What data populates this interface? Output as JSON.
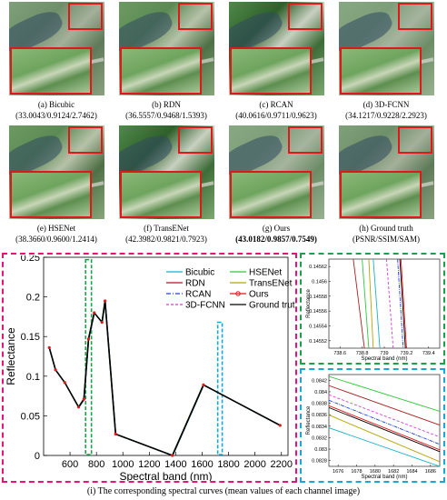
{
  "panels": [
    {
      "label": "(a) Bicubic",
      "metrics": "(33.0043/0.9124/2.7462)",
      "bold": false
    },
    {
      "label": "(b) RDN",
      "metrics": "(36.5557/0.9468/1.5393)",
      "bold": false
    },
    {
      "label": "(c) RCAN",
      "metrics": "(40.0616/0.9711/0.9623)",
      "bold": false
    },
    {
      "label": "(d) 3D-FCNN",
      "metrics": "(34.1217/0.9228/2.2923)",
      "bold": false
    },
    {
      "label": "(e) HSENet",
      "metrics": "(38.3660/0.9600/1.2414)",
      "bold": false
    },
    {
      "label": "(f) TransENet",
      "metrics": "(42.3982/0.9821/0.7923)",
      "bold": false
    },
    {
      "label": "(g) Ours",
      "metrics": "(43.0182/0.9857/0.7549)",
      "bold": true
    },
    {
      "label": "(h) Ground truth",
      "metrics": "(PSNR/SSIM/SAM)",
      "bold": false
    }
  ],
  "figure_caption": "(i) The corresponding spectral curves (mean values of each channel image)",
  "colors": {
    "magenta_box": "#e8137a",
    "green_box": "#1aa14a",
    "cyan_box": "#1aa7d8",
    "zoom_red": "#e01818"
  },
  "chart_data": [
    {
      "type": "line",
      "xlabel": "Spectral band (nm)",
      "ylabel": "Reflectance",
      "xlim": [
        400,
        2250
      ],
      "ylim": [
        0,
        0.25
      ],
      "xticks": [
        600,
        800,
        1000,
        1200,
        1400,
        1600,
        1800,
        2000,
        2200
      ],
      "yticks": [
        0,
        0.05,
        0.1,
        0.15,
        0.2,
        0.25
      ],
      "legend": [
        {
          "name": "Bicubic",
          "color": "#19b2c8",
          "style": "solid"
        },
        {
          "name": "HSENet",
          "color": "#2ec83a",
          "style": "solid"
        },
        {
          "name": "RDN",
          "color": "#a81f1f",
          "style": "solid"
        },
        {
          "name": "TransENet",
          "color": "#b8a400",
          "style": "solid"
        },
        {
          "name": "RCAN",
          "color": "#2040d8",
          "style": "dashdot"
        },
        {
          "name": "Ours",
          "color": "#e01818",
          "style": "marker"
        },
        {
          "name": "3D-FCNN",
          "color": "#d040d0",
          "style": "dashed"
        },
        {
          "name": "Ground truth",
          "color": "#000000",
          "style": "solid"
        }
      ],
      "x": [
        443,
        490,
        560,
        665,
        705,
        740,
        783,
        842,
        865,
        945,
        1375,
        1610,
        2190
      ],
      "values": [
        0.136,
        0.108,
        0.092,
        0.061,
        0.071,
        0.147,
        0.18,
        0.168,
        0.195,
        0.027,
        0.0,
        0.089,
        0.038
      ],
      "highlight_boxes": [
        "green",
        "cyan"
      ]
    },
    {
      "type": "line",
      "xlabel": "Spectral band (nm)",
      "ylabel": "Reflectance",
      "xticks": [
        "738.6",
        "738.8",
        "739",
        "739.2",
        "739.4"
      ],
      "yticks": [
        "0.14552",
        "0.14554",
        "0.14556",
        "0.14558",
        "0.1456",
        "0.14562"
      ]
    },
    {
      "type": "line",
      "xlabel": "Spectral band (nm)",
      "ylabel": "Reflectance",
      "xticks": [
        "1676",
        "1678",
        "1680",
        "1682",
        "1684",
        "1686"
      ],
      "yticks": [
        "0.0828",
        "0.083",
        "0.0832",
        "0.0834",
        "0.0836",
        "0.0838",
        "0.084",
        "0.0842"
      ]
    }
  ]
}
